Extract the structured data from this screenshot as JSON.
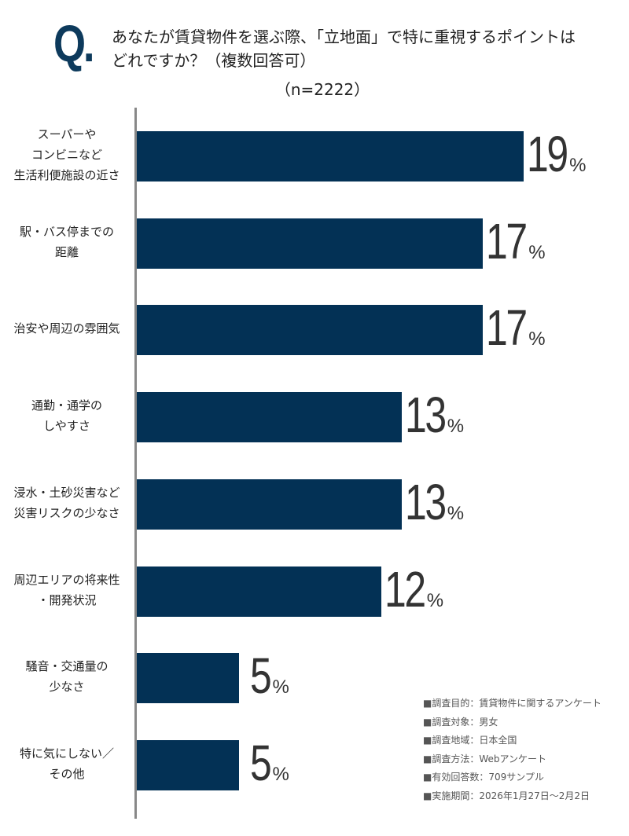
{
  "header": {
    "q_mark": "Q.",
    "title_line1": "あなたが賃貸物件を選ぶ際、「立地面」で特に重視するポイントは",
    "title_line2": "どれですか？（複数回答可）",
    "sample": "（n=2222）"
  },
  "chart_data": {
    "type": "bar",
    "orientation": "horizontal",
    "title": "あなたが賃貸物件を選ぶ際、「立地面」で特に重視するポイントはどれですか？（複数回答可）",
    "unit": "%",
    "bar_color": "#033155",
    "xlim": [
      0,
      20
    ],
    "grid": false,
    "categories": [
      [
        "スーパーや",
        "コンビニなど",
        "生活利便施設の近さ"
      ],
      [
        "駅・バス停までの",
        "距離"
      ],
      [
        "治安や周辺の雰囲気"
      ],
      [
        "通勤・通学の",
        "しやすさ"
      ],
      [
        "浸水・土砂災害など",
        "災害リスクの少なさ"
      ],
      [
        "周辺エリアの将来性",
        "・開発状況"
      ],
      [
        "騒音・交通量の",
        "少なさ"
      ],
      [
        "特に気にしない／",
        "その他"
      ]
    ],
    "values": [
      19,
      17,
      17,
      13,
      13,
      12,
      5,
      5
    ]
  },
  "notes": [
    "■調査目的：賃貸物件に関するアンケート",
    "■調査対象：男女",
    "■調査地域：日本全国",
    "■調査方法：Webアンケート",
    "■有効回答数：709サンプル",
    "■実施期間：2026年1月27日～2月2日"
  ]
}
